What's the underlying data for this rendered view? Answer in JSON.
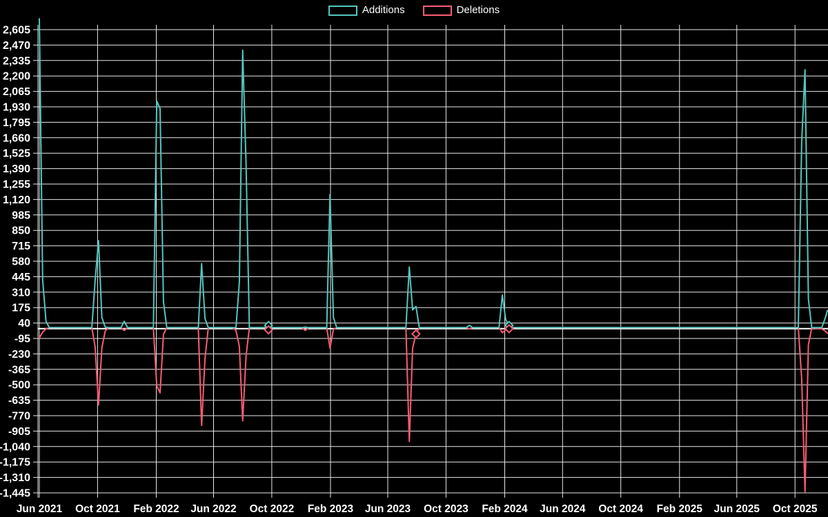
{
  "colors": {
    "additions": "#54C6BE",
    "deletions": "#F85C73",
    "background": "#000000",
    "grid": "#E8E8E8",
    "axis_text": "#FFFFFF",
    "zero_line": "#FFFFFF"
  },
  "legend": {
    "items": [
      "Additions",
      "Deletions"
    ]
  },
  "chart_data": {
    "type": "line",
    "title": "",
    "xlabel": "",
    "ylabel": "",
    "grid": true,
    "legend_position": "top-center",
    "y_range": {
      "min": -1445,
      "max": 2605,
      "step": 135
    },
    "y_tick_labels": [
      "2,605",
      "2,470",
      "2,335",
      "2,200",
      "2,065",
      "1,930",
      "1,795",
      "1,660",
      "1,525",
      "1,390",
      "1,255",
      "1,120",
      "985",
      "850",
      "715",
      "580",
      "445",
      "310",
      "175",
      "40",
      "-95",
      "-230",
      "-365",
      "-500",
      "-635",
      "-770",
      "-905",
      "-1,040",
      "-1,175",
      "-1,310",
      "-1,445"
    ],
    "x_ticks": [
      {
        "label": "Jun 2021",
        "date": "2021-06-01"
      },
      {
        "label": "Oct 2021",
        "date": "2021-10-01"
      },
      {
        "label": "Feb 2022",
        "date": "2022-02-01"
      },
      {
        "label": "Jun 2022",
        "date": "2022-06-01"
      },
      {
        "label": "Oct 2022",
        "date": "2022-10-01"
      },
      {
        "label": "Feb 2023",
        "date": "2023-02-01"
      },
      {
        "label": "Jun 2023",
        "date": "2023-06-01"
      },
      {
        "label": "Oct 2023",
        "date": "2023-10-01"
      },
      {
        "label": "Feb 2024",
        "date": "2024-02-01"
      },
      {
        "label": "Jun 2024",
        "date": "2024-06-01"
      },
      {
        "label": "Oct 2024",
        "date": "2024-10-01"
      },
      {
        "label": "Feb 2025",
        "date": "2025-02-01"
      },
      {
        "label": "Jun 2025",
        "date": "2025-06-01"
      },
      {
        "label": "Oct 2025",
        "date": "2025-10-01"
      }
    ],
    "series": [
      {
        "name": "Additions",
        "color": "#54C6BE",
        "points": [
          [
            "2021-06-01",
            2700
          ],
          [
            "2021-06-08",
            420
          ],
          [
            "2021-06-15",
            55
          ],
          [
            "2021-06-22",
            0
          ],
          [
            "2021-09-19",
            0
          ],
          [
            "2021-09-26",
            415
          ],
          [
            "2021-10-03",
            760
          ],
          [
            "2021-10-10",
            90
          ],
          [
            "2021-10-17",
            5
          ],
          [
            "2021-10-24",
            0
          ],
          [
            "2021-11-19",
            0
          ],
          [
            "2021-11-26",
            55
          ],
          [
            "2021-12-03",
            0
          ],
          [
            "2022-01-26",
            0
          ],
          [
            "2022-02-02",
            1980
          ],
          [
            "2022-02-09",
            1915
          ],
          [
            "2022-02-16",
            225
          ],
          [
            "2022-02-23",
            0
          ],
          [
            "2022-04-30",
            0
          ],
          [
            "2022-05-07",
            560
          ],
          [
            "2022-05-14",
            80
          ],
          [
            "2022-05-21",
            0
          ],
          [
            "2022-07-11",
            0
          ],
          [
            "2022-07-18",
            0
          ],
          [
            "2022-07-25",
            395
          ],
          [
            "2022-08-01",
            2425
          ],
          [
            "2022-08-08",
            1435
          ],
          [
            "2022-08-15",
            0
          ],
          [
            "2022-09-17",
            0
          ],
          [
            "2022-09-24",
            20
          ],
          [
            "2022-10-01",
            0
          ],
          [
            "2022-12-03",
            0
          ],
          [
            "2022-12-10",
            5
          ],
          [
            "2022-12-17",
            0
          ],
          [
            "2023-01-24",
            0
          ],
          [
            "2023-01-31",
            1165
          ],
          [
            "2023-02-07",
            90
          ],
          [
            "2023-02-14",
            0
          ],
          [
            "2023-07-09",
            0
          ],
          [
            "2023-07-16",
            530
          ],
          [
            "2023-07-23",
            155
          ],
          [
            "2023-07-30",
            185
          ],
          [
            "2023-08-06",
            0
          ],
          [
            "2023-11-12",
            0
          ],
          [
            "2023-11-19",
            20
          ],
          [
            "2023-11-26",
            0
          ],
          [
            "2024-01-20",
            0
          ],
          [
            "2024-01-27",
            285
          ],
          [
            "2024-02-03",
            70
          ],
          [
            "2024-02-10",
            20
          ],
          [
            "2024-02-17",
            0
          ],
          [
            "2025-10-08",
            0
          ],
          [
            "2025-10-15",
            1630
          ],
          [
            "2025-10-22",
            2255
          ],
          [
            "2025-10-29",
            250
          ],
          [
            "2025-11-05",
            0
          ],
          [
            "2025-11-26",
            0
          ],
          [
            "2025-12-03",
            80
          ],
          [
            "2025-12-08",
            150
          ]
        ]
      },
      {
        "name": "Deletions",
        "color": "#F85C73",
        "points": [
          [
            "2021-06-01",
            -90
          ],
          [
            "2021-06-08",
            -40
          ],
          [
            "2021-06-15",
            -10
          ],
          [
            "2021-06-22",
            0
          ],
          [
            "2021-09-19",
            0
          ],
          [
            "2021-09-26",
            -170
          ],
          [
            "2021-10-03",
            -675
          ],
          [
            "2021-10-10",
            -180
          ],
          [
            "2021-10-17",
            -30
          ],
          [
            "2021-10-24",
            0
          ],
          [
            "2021-11-19",
            0
          ],
          [
            "2021-11-26",
            -25
          ],
          [
            "2021-12-03",
            0
          ],
          [
            "2022-01-26",
            0
          ],
          [
            "2022-02-02",
            -510
          ],
          [
            "2022-02-09",
            -570
          ],
          [
            "2022-02-16",
            -60
          ],
          [
            "2022-02-23",
            0
          ],
          [
            "2022-04-30",
            0
          ],
          [
            "2022-05-07",
            -855
          ],
          [
            "2022-05-14",
            -270
          ],
          [
            "2022-05-21",
            0
          ],
          [
            "2022-07-11",
            0
          ],
          [
            "2022-07-18",
            -25
          ],
          [
            "2022-07-25",
            -165
          ],
          [
            "2022-08-01",
            -815
          ],
          [
            "2022-08-08",
            -250
          ],
          [
            "2022-08-15",
            0
          ],
          [
            "2022-09-17",
            0
          ],
          [
            "2022-09-24",
            -20
          ],
          [
            "2022-10-01",
            0
          ],
          [
            "2022-12-03",
            0
          ],
          [
            "2022-12-10",
            -25
          ],
          [
            "2022-12-17",
            0
          ],
          [
            "2023-01-24",
            0
          ],
          [
            "2023-01-31",
            -180
          ],
          [
            "2023-02-07",
            -15
          ],
          [
            "2023-02-14",
            0
          ],
          [
            "2023-07-09",
            0
          ],
          [
            "2023-07-16",
            -995
          ],
          [
            "2023-07-23",
            -180
          ],
          [
            "2023-07-30",
            -55
          ],
          [
            "2023-08-06",
            0
          ],
          [
            "2023-11-12",
            0
          ],
          [
            "2023-11-19",
            -10
          ],
          [
            "2023-11-26",
            0
          ],
          [
            "2024-01-20",
            0
          ],
          [
            "2024-01-27",
            -45
          ],
          [
            "2024-02-03",
            -20
          ],
          [
            "2024-02-10",
            -10
          ],
          [
            "2024-02-17",
            0
          ],
          [
            "2025-10-08",
            0
          ],
          [
            "2025-10-15",
            -450
          ],
          [
            "2025-10-22",
            -1435
          ],
          [
            "2025-10-29",
            -150
          ],
          [
            "2025-11-05",
            -5
          ],
          [
            "2025-11-26",
            -10
          ],
          [
            "2025-12-03",
            -30
          ],
          [
            "2025-12-08",
            -50
          ]
        ]
      }
    ],
    "markers": [
      {
        "series": "Additions",
        "date": "2022-09-24",
        "value": 20
      },
      {
        "series": "Deletions",
        "date": "2022-09-24",
        "value": -20
      },
      {
        "series": "Deletions",
        "date": "2023-07-30",
        "value": -55
      },
      {
        "series": "Additions",
        "date": "2024-02-10",
        "value": 20
      },
      {
        "series": "Deletions",
        "date": "2024-02-10",
        "value": -10
      }
    ]
  }
}
